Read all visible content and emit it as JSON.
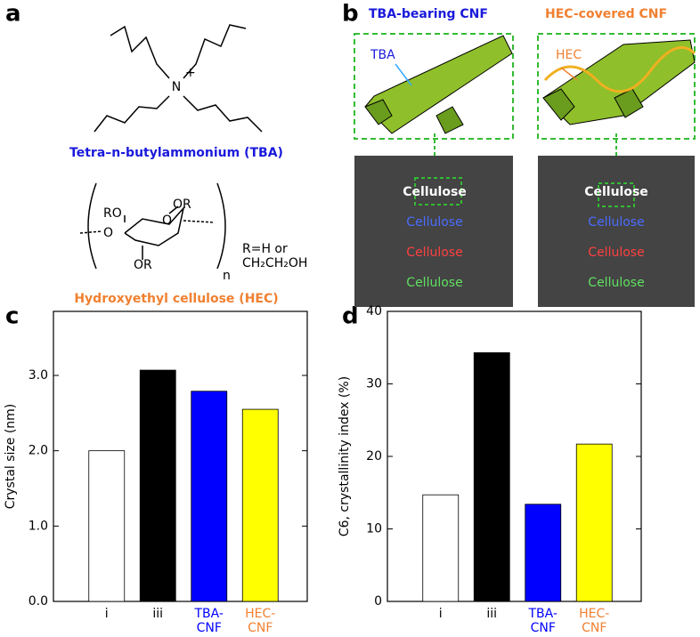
{
  "figure": {
    "panel_labels": [
      "a",
      "b",
      "c",
      "d"
    ],
    "tba": {
      "atom": "N",
      "charge": "+",
      "name": "Tetra–n-butylammonium  (TBA)"
    },
    "hec": {
      "ring_labels": [
        "RO",
        "OR",
        "O",
        "O",
        "OR"
      ],
      "repeat": "n",
      "r_def": [
        "R=H or",
        "CH₂CH₂OH"
      ],
      "name": "Hydroxyethyl cellulose (HEC)"
    },
    "panel_b": {
      "titles": [
        "TBA-bearing CNF",
        "HEC-covered CNF"
      ],
      "callouts": [
        "TBA",
        "HEC"
      ],
      "photo_texts": [
        [
          "Cellulose",
          "Cellulose",
          "Cellulose",
          "Cellulose"
        ],
        [
          "Cellulose",
          "Cellulose",
          "Cellulose",
          "Cellulose"
        ]
      ]
    }
  },
  "chart_data": [
    {
      "type": "bar",
      "ylabel": "Crystal size (nm)",
      "categories": [
        "i",
        "iii",
        "TBA-\nCNF",
        "HEC-\nCNF"
      ],
      "values": [
        2.0,
        3.07,
        2.79,
        2.55
      ],
      "colors": [
        "#ffffff",
        "#000000",
        "#0000ff",
        "#ffff00"
      ],
      "label_colors": [
        "#000000",
        "#000000",
        "#0000ff",
        "#f08030"
      ],
      "ylim": [
        0,
        3.85
      ],
      "yticks": [
        {
          "value": 0,
          "label": "0.0"
        },
        {
          "value": 1,
          "label": "1.0"
        },
        {
          "value": 2,
          "label": "2.0"
        },
        {
          "value": 3,
          "label": "3.0"
        }
      ]
    },
    {
      "type": "bar",
      "ylabel": "C6, crystallinity index (%)",
      "categories": [
        "i",
        "iii",
        "TBA-\nCNF",
        "HEC-\nCNF"
      ],
      "values": [
        14.7,
        34.3,
        13.4,
        21.7
      ],
      "colors": [
        "#ffffff",
        "#000000",
        "#0000ff",
        "#ffff00"
      ],
      "label_colors": [
        "#000000",
        "#000000",
        "#0000ff",
        "#f08030"
      ],
      "ylim": [
        0,
        40
      ],
      "yticks": [
        0,
        10,
        20,
        30,
        40
      ]
    }
  ]
}
